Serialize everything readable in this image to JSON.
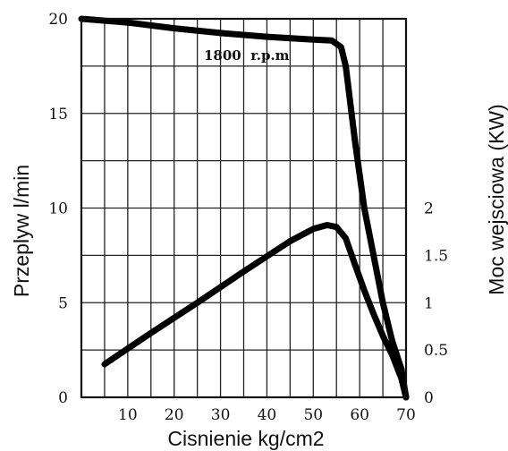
{
  "chart_data": {
    "type": "line",
    "xlabel": "Cisnienie kg/cm2",
    "ylabel_left": "Przeplyw l/min",
    "ylabel_right": "Moc wejsciowa (KW)",
    "annotation": "1800  r.p.m",
    "xlim": [
      0,
      70
    ],
    "ylim_left": [
      0,
      20
    ],
    "ylim_right": [
      0,
      4
    ],
    "x_ticks": [
      10,
      20,
      30,
      40,
      50,
      60,
      70
    ],
    "y_ticks_left": [
      0,
      5,
      10,
      15,
      20
    ],
    "y_ticks_right": [
      {
        "value": 0,
        "label": "0"
      },
      {
        "value": 0.5,
        "label": "0.5"
      },
      {
        "value": 1,
        "label": "1"
      },
      {
        "value": 1.5,
        "label": "1.5"
      },
      {
        "value": 2,
        "label": "2"
      }
    ],
    "grid": true,
    "series": [
      {
        "axis": "left",
        "points": [
          [
            0,
            20
          ],
          [
            10,
            19.8
          ],
          [
            20,
            19.5
          ],
          [
            30,
            19.25
          ],
          [
            40,
            19.05
          ],
          [
            50,
            18.9
          ],
          [
            54,
            18.85
          ],
          [
            56,
            18.5
          ],
          [
            57,
            17.5
          ],
          [
            59,
            13.5
          ],
          [
            61,
            10
          ],
          [
            63,
            7.5
          ],
          [
            65,
            5
          ],
          [
            67,
            3
          ],
          [
            69,
            1.5
          ],
          [
            70,
            0
          ]
        ]
      },
      {
        "axis": "right",
        "points": [
          [
            5,
            0.35
          ],
          [
            15,
            0.68
          ],
          [
            25,
            1.0
          ],
          [
            35,
            1.33
          ],
          [
            45,
            1.65
          ],
          [
            50,
            1.78
          ],
          [
            53,
            1.82
          ],
          [
            55,
            1.8
          ],
          [
            57,
            1.68
          ],
          [
            59,
            1.4
          ],
          [
            61,
            1.13
          ],
          [
            63,
            0.88
          ],
          [
            65,
            0.65
          ],
          [
            67,
            0.45
          ],
          [
            69,
            0.2
          ],
          [
            70,
            0
          ]
        ]
      }
    ]
  }
}
